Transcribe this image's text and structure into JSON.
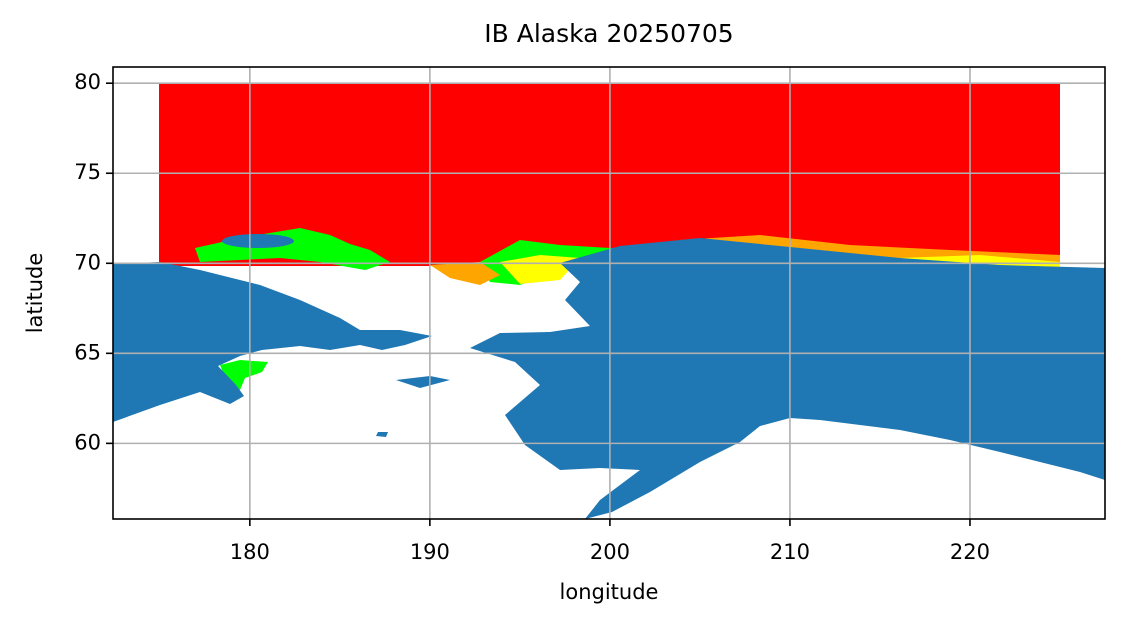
{
  "chart_data": {
    "type": "map",
    "title": "IB Alaska 20250705",
    "x_label": "longitude",
    "y_label": "latitude",
    "xlim": [
      172.4,
      227.5
    ],
    "ylim": [
      55.8,
      80.9
    ],
    "xticks": [
      180,
      190,
      200,
      210,
      220
    ],
    "yticks": [
      60,
      65,
      70,
      75,
      80
    ],
    "grid": true,
    "land_color": "#1f77b4"
  }
}
